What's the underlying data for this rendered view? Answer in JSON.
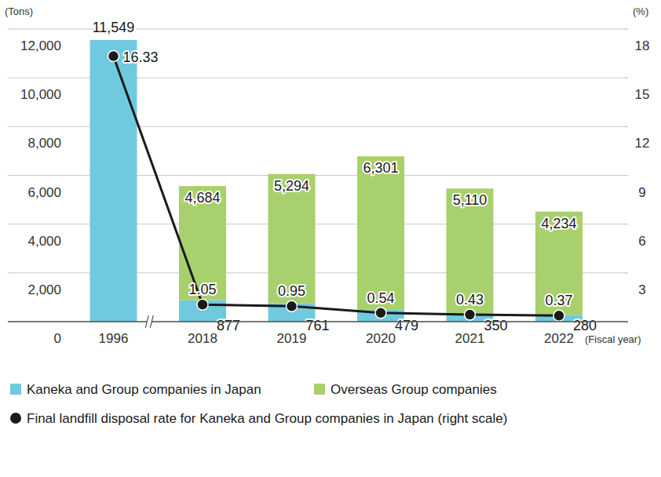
{
  "chart_data": {
    "type": "bar",
    "stacked": true,
    "data_labels": true,
    "grid": true,
    "legend": "bottom",
    "x_label": "(Fiscal year)",
    "y_label": "(Tons)",
    "y2_label": "(%)",
    "categories": [
      "1996",
      "2018",
      "2019",
      "2020",
      "2021",
      "2022"
    ],
    "ylim": [
      0,
      12000
    ],
    "yticks": [
      0,
      {
        "value": 2000,
        "label": "2,000"
      },
      {
        "value": 4000,
        "label": "4,000"
      },
      {
        "value": 6000,
        "label": "6,000"
      },
      {
        "value": 8000,
        "label": "8,000"
      },
      {
        "value": 10000,
        "label": "10,000"
      },
      {
        "value": 12000,
        "label": "12,000"
      }
    ],
    "y2lim": [
      0,
      18
    ],
    "y2ticks": [
      3,
      6,
      9,
      12,
      15,
      18
    ],
    "series": [
      {
        "name": "Kaneka and Group companies in Japan",
        "color": "#6fcae0",
        "values": [
          11549,
          877,
          761,
          479,
          350,
          280
        ],
        "value_labels": [
          "11,549",
          "877",
          "761",
          "479",
          "350",
          "280"
        ]
      },
      {
        "name": "Overseas Group companies",
        "color": "#a8d06c",
        "values": [
          null,
          4684,
          5294,
          6301,
          5110,
          4234
        ],
        "value_labels": [
          null,
          "4,684",
          "5,294",
          "6,301",
          "5,110",
          "4,234"
        ]
      },
      {
        "name": "Final landfill disposal rate for Kaneka and Group companies in Japan (right scale)",
        "type": "line",
        "axis": "y2",
        "color": "#1a1a1a",
        "marker": "circle",
        "values": [
          16.33,
          1.05,
          0.95,
          0.54,
          0.43,
          0.37
        ]
      }
    ]
  }
}
